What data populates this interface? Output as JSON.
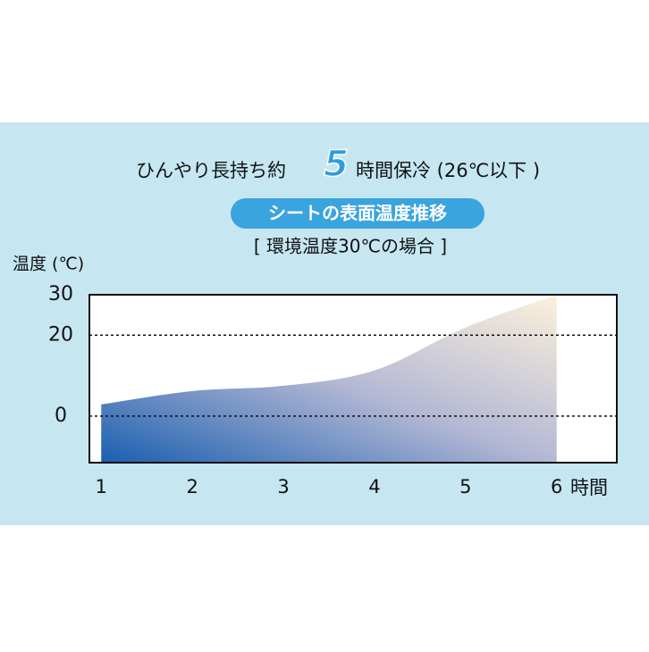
{
  "chart_data": {
    "type": "area",
    "title": [
      "ひんやり長持ち約",
      "5",
      "時間保冷 (26℃以下 )"
    ],
    "subtitle": "シートの表面温度推移",
    "annotation": "[ 環境温度30℃の場合 ]",
    "y_label": "温度 (℃)",
    "x_label": "時間",
    "x": [
      1,
      2,
      3,
      4,
      5,
      6
    ],
    "values": [
      2.9,
      6.2,
      7.5,
      11.3,
      21.9,
      30
    ],
    "xlim": [
      0.87,
      6.66
    ],
    "xticks": [
      1,
      2,
      3,
      4,
      5,
      6
    ],
    "ylim": [
      -11.5,
      30
    ],
    "yticks": [
      0,
      20,
      30
    ],
    "grid": true,
    "color": "#1a5fb0"
  }
}
